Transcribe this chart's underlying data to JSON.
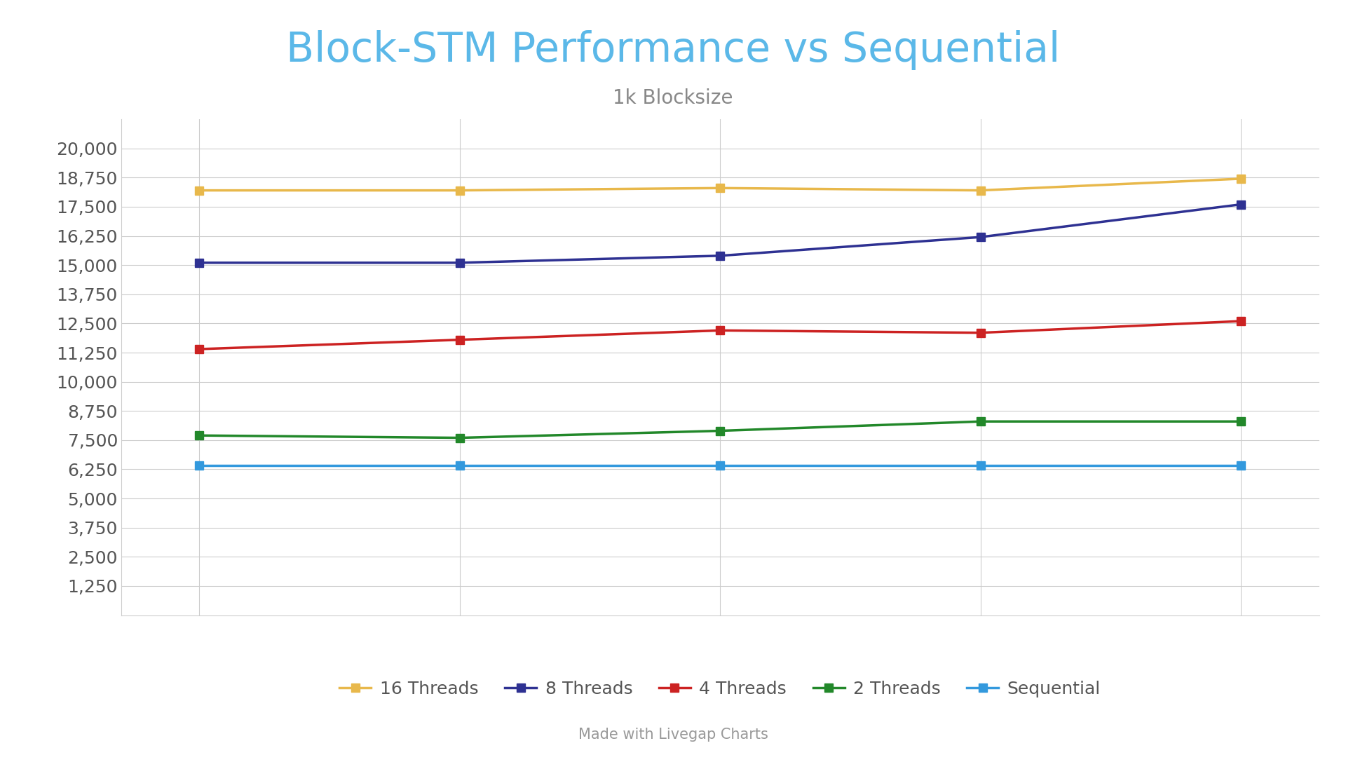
{
  "title": "Block-STM Performance vs Sequential",
  "subtitle": "1k Blocksize",
  "footer": "Made with Livegap Charts",
  "x_values": [
    1,
    2,
    3,
    4,
    5
  ],
  "series": [
    {
      "label": "16 Threads",
      "color": "#E8B84B",
      "marker": "s",
      "values": [
        18200,
        18200,
        18300,
        18200,
        18700
      ]
    },
    {
      "label": "8 Threads",
      "color": "#2E3192",
      "marker": "s",
      "values": [
        15100,
        15100,
        15400,
        16200,
        17600
      ]
    },
    {
      "label": "4 Threads",
      "color": "#CC2222",
      "marker": "s",
      "values": [
        11400,
        11800,
        12200,
        12100,
        12600
      ]
    },
    {
      "label": "2 Threads",
      "color": "#22882A",
      "marker": "s",
      "values": [
        7700,
        7600,
        7900,
        8300,
        8300
      ]
    },
    {
      "label": "Sequential",
      "color": "#3399DD",
      "marker": "s",
      "values": [
        6400,
        6400,
        6400,
        6400,
        6400
      ]
    }
  ],
  "ylim": [
    0,
    21250
  ],
  "yticks": [
    1250,
    2500,
    3750,
    5000,
    6250,
    7500,
    8750,
    10000,
    11250,
    12500,
    13750,
    15000,
    16250,
    17500,
    18750,
    20000
  ],
  "background_color": "#FFFFFF",
  "grid_color": "#CCCCCC",
  "title_color": "#5BB8E8",
  "subtitle_color": "#888888",
  "footer_color": "#999999",
  "title_fontsize": 42,
  "subtitle_fontsize": 20,
  "footer_fontsize": 15,
  "tick_label_color": "#555555",
  "tick_label_fontsize": 18,
  "line_width": 2.5,
  "marker_size": 9,
  "legend_fontsize": 18
}
